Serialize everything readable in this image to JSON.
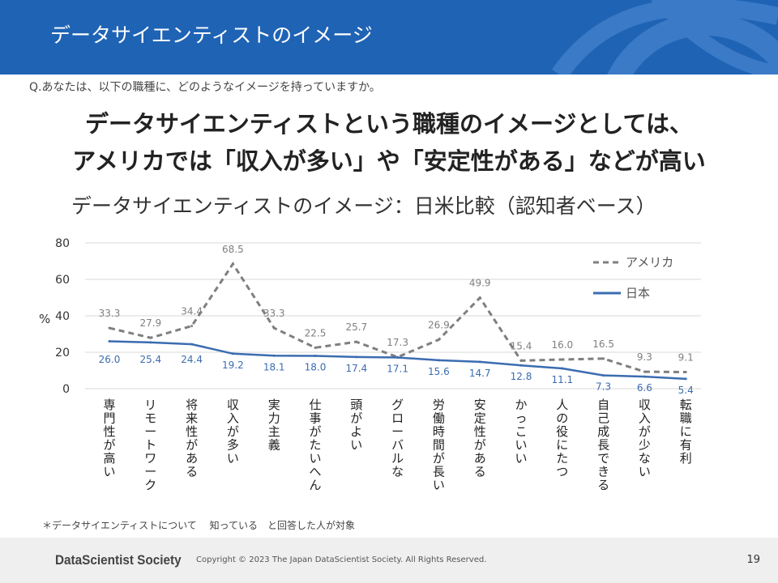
{
  "header": {
    "title": "データサイエンティストのイメージ"
  },
  "question": "Q.あなたは、以下の職種に、どのようなイメージを持っていますか。",
  "headline": {
    "line1": "データサイエンティストという職種のイメージとしては、",
    "line2": "アメリカでは「収入が多い」や「安定性がある」などが高い"
  },
  "chart_title": "データサイエンティストのイメージ：日米比較（認知者ベース）",
  "chart_data": {
    "type": "line",
    "title": "データサイエンティストのイメージ：日米比較（認知者ベース）",
    "ylabel": "%",
    "ylim": [
      0,
      80
    ],
    "yticks": [
      0,
      20,
      40,
      60,
      80
    ],
    "grid": true,
    "legend_position": "top-right",
    "categories": [
      "専門性が高い",
      "リモートワーク",
      "将来性がある",
      "収入が多い",
      "実力主義",
      "仕事がたいへん",
      "頭がよい",
      "グローバルな",
      "労働時間が長い",
      "安定性がある",
      "かっこいい",
      "人の役にたつ",
      "自己成長できる",
      "収入が少ない",
      "転職に有利"
    ],
    "series": [
      {
        "name": "アメリカ",
        "style": "dashed",
        "color": "#7f7f7f",
        "values": [
          33.3,
          27.9,
          34.4,
          68.5,
          33.3,
          22.5,
          25.7,
          17.3,
          26.9,
          49.9,
          15.4,
          16.0,
          16.5,
          9.3,
          9.1
        ]
      },
      {
        "name": "日本",
        "style": "solid",
        "color": "#3b6cb0",
        "values": [
          26.0,
          25.4,
          24.4,
          19.2,
          18.1,
          18.0,
          17.4,
          17.1,
          15.6,
          14.7,
          12.8,
          11.1,
          7.3,
          6.6,
          5.4
        ]
      }
    ]
  },
  "footnote": "＊データサイエンティストについて　 知っている　と回答した人が対象",
  "footer": {
    "brand": "DataScientist Society",
    "copyright": "Copyright © 2023 The Japan DataScientist Society. All Rights Reserved.",
    "page": "19"
  }
}
